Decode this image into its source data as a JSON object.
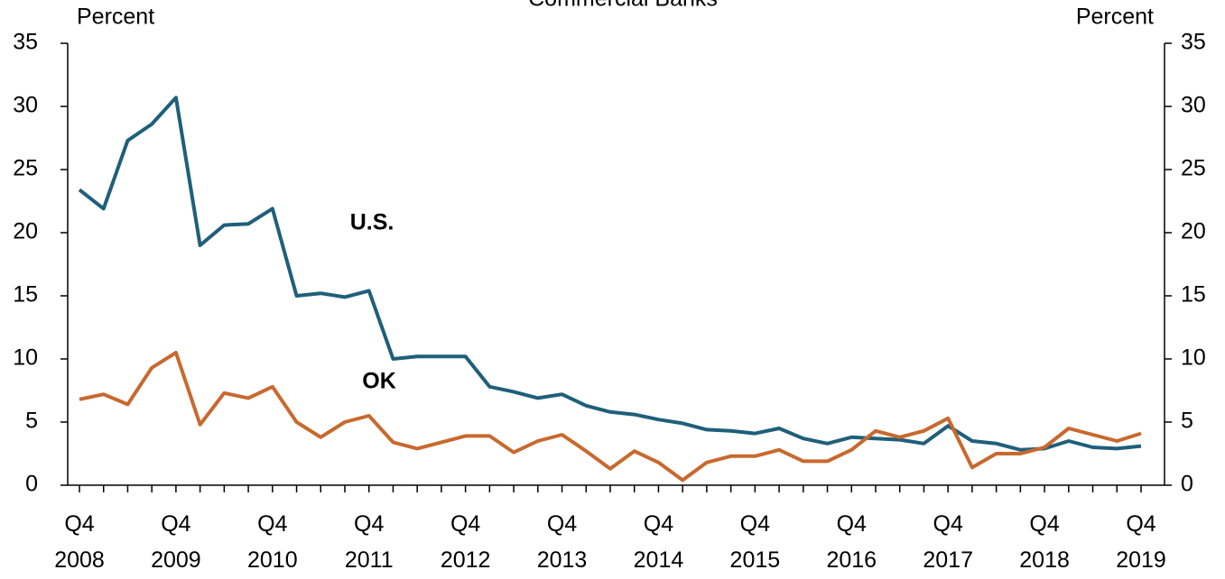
{
  "chart_data": {
    "type": "line",
    "title": "Commercial Banks",
    "y_label": "Percent",
    "y2_label": "Percent",
    "annotations": [
      "U.S.",
      "OK"
    ],
    "categories": [
      "Q4 2008",
      null,
      null,
      null,
      "Q4 2009",
      null,
      null,
      null,
      "Q4 2010",
      null,
      null,
      null,
      "Q4 2011",
      null,
      null,
      null,
      "Q4 2012",
      null,
      null,
      null,
      "Q4 2013",
      null,
      null,
      null,
      "Q4 2014",
      null,
      null,
      null,
      "Q4 2015",
      null,
      null,
      null,
      "Q4 2016",
      null,
      null,
      null,
      "Q4 2017",
      null,
      null,
      null,
      "Q4 2018",
      null,
      null,
      null,
      "Q4 2019"
    ],
    "series": [
      {
        "name": "U.S.",
        "color": "#1f5f7a",
        "values": [
          23.4,
          21.9,
          27.3,
          28.6,
          30.7,
          19.0,
          20.6,
          20.7,
          21.9,
          15.0,
          15.2,
          14.9,
          15.4,
          10.0,
          10.2,
          10.2,
          10.2,
          7.8,
          7.4,
          6.9,
          7.2,
          6.3,
          5.8,
          5.6,
          5.2,
          4.9,
          4.4,
          4.3,
          4.1,
          4.5,
          3.7,
          3.3,
          3.8,
          3.7,
          3.6,
          3.3,
          4.7,
          3.5,
          3.3,
          2.8,
          2.9,
          3.5,
          3.0,
          2.9,
          3.1
        ]
      },
      {
        "name": "OK",
        "color": "#c8692e",
        "values": [
          6.8,
          7.2,
          6.4,
          9.3,
          10.5,
          4.8,
          7.3,
          6.9,
          7.8,
          5.0,
          3.8,
          5.0,
          5.5,
          3.4,
          2.9,
          3.4,
          3.9,
          3.9,
          2.6,
          3.5,
          4.0,
          2.7,
          1.3,
          2.7,
          1.8,
          0.4,
          1.8,
          2.3,
          2.3,
          2.8,
          1.9,
          1.9,
          2.8,
          4.3,
          3.8,
          4.3,
          5.3,
          1.4,
          2.5,
          2.5,
          3.0,
          4.5,
          4.0,
          3.5,
          4.1
        ]
      }
    ],
    "ylim": [
      0,
      35
    ],
    "yticks": [
      0,
      5,
      10,
      15,
      20,
      25,
      30,
      35
    ],
    "y2lim": [
      0,
      35
    ],
    "y2ticks": [
      0,
      5,
      10,
      15,
      20,
      25,
      30,
      35
    ],
    "grid": false
  }
}
